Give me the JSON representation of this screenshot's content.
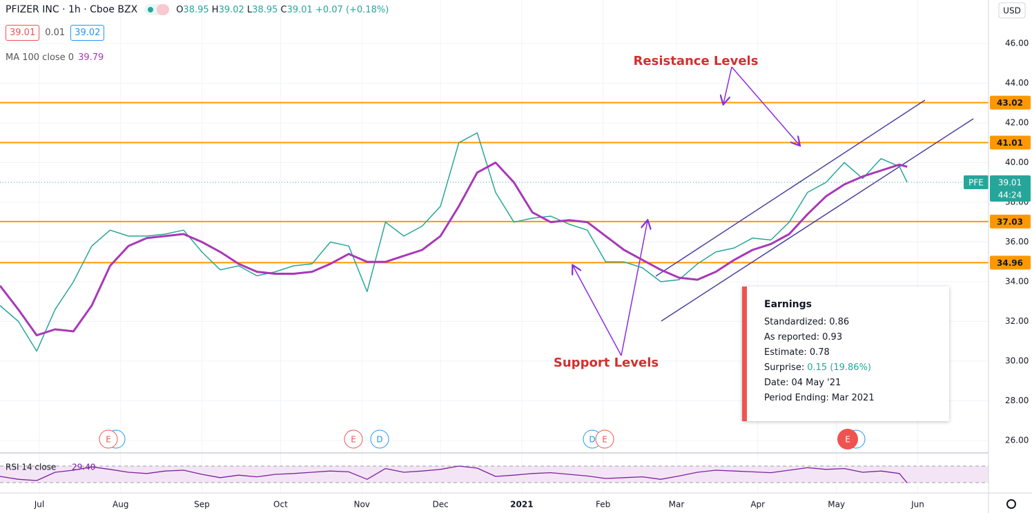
{
  "header": {
    "title": "PFIZER INC · 1h · Cboe BZX",
    "ohlc": [
      {
        "label": "O",
        "value": "38.95"
      },
      {
        "label": "H",
        "value": "39.02"
      },
      {
        "label": "L",
        "value": "38.95"
      },
      {
        "label": "C",
        "value": "39.01"
      }
    ],
    "change": "+0.07 (+0.18%)",
    "bid": "39.01",
    "spread": "0.01",
    "ask": "39.02",
    "currency": "USD",
    "countdown": "44:24"
  },
  "annotations": {
    "resistance": "Resistance Levels",
    "support": "Support Levels"
  },
  "events": [
    {
      "label": "E"
    },
    {
      "label": "E"
    },
    {
      "label": "D"
    },
    {
      "label": "D"
    },
    {
      "label": "E"
    },
    {
      "label": "E"
    }
  ],
  "earnings_tooltip": {
    "title": "Earnings",
    "rows": [
      {
        "label": "Standardized:",
        "value": "0.86"
      },
      {
        "label": "As reported:",
        "value": "0.93"
      },
      {
        "label": "Estimate:",
        "value": "0.78"
      },
      {
        "label": "Surprise:",
        "value": "0.15 (19.86%)"
      },
      {
        "label": "Date:",
        "value": "04 May '21"
      },
      {
        "label": "Period Ending:",
        "value": "Mar 2021"
      }
    ]
  },
  "chart_data": {
    "type": "line",
    "x": [
      "2020-06-16",
      "2020-06-23",
      "2020-06-30",
      "2020-07-07",
      "2020-07-14",
      "2020-07-21",
      "2020-07-28",
      "2020-08-04",
      "2020-08-11",
      "2020-08-18",
      "2020-08-25",
      "2020-09-01",
      "2020-09-08",
      "2020-09-15",
      "2020-09-22",
      "2020-09-29",
      "2020-10-06",
      "2020-10-13",
      "2020-10-20",
      "2020-10-27",
      "2020-11-03",
      "2020-11-10",
      "2020-11-17",
      "2020-11-24",
      "2020-12-01",
      "2020-12-08",
      "2020-12-15",
      "2020-12-22",
      "2020-12-29",
      "2021-01-05",
      "2021-01-12",
      "2021-01-19",
      "2021-01-26",
      "2021-02-02",
      "2021-02-09",
      "2021-02-16",
      "2021-02-23",
      "2021-03-02",
      "2021-03-09",
      "2021-03-16",
      "2021-03-23",
      "2021-03-30",
      "2021-04-06",
      "2021-04-13",
      "2021-04-20",
      "2021-04-27",
      "2021-05-04",
      "2021-05-11",
      "2021-05-18",
      "2021-05-25",
      "2021-05-28"
    ],
    "series": [
      {
        "name": "PFE",
        "color": "#26a69a",
        "values": [
          32.8,
          32.0,
          30.5,
          32.6,
          34.0,
          35.8,
          36.6,
          36.3,
          36.3,
          36.4,
          36.6,
          35.5,
          34.6,
          34.8,
          34.3,
          34.5,
          34.8,
          34.9,
          36.0,
          35.8,
          33.5,
          37.0,
          36.3,
          36.8,
          37.8,
          41.0,
          41.5,
          38.5,
          37.0,
          37.2,
          37.3,
          36.9,
          36.6,
          35.0,
          35.0,
          34.7,
          34.0,
          34.1,
          34.9,
          35.5,
          35.7,
          36.2,
          36.1,
          37.0,
          38.5,
          39.0,
          40.0,
          39.2,
          40.2,
          39.8,
          39.01
        ]
      },
      {
        "name": "MA 100 close 0",
        "color": "#a838b8",
        "values": [
          33.8,
          32.6,
          31.3,
          31.6,
          31.5,
          32.8,
          34.8,
          35.8,
          36.2,
          36.3,
          36.4,
          36.0,
          35.5,
          34.9,
          34.5,
          34.4,
          34.4,
          34.5,
          34.9,
          35.4,
          35.0,
          35.0,
          35.3,
          35.6,
          36.3,
          37.8,
          39.5,
          40.0,
          39.0,
          37.5,
          37.0,
          37.1,
          37.0,
          36.3,
          35.6,
          35.1,
          34.6,
          34.2,
          34.1,
          34.5,
          35.1,
          35.6,
          35.9,
          36.4,
          37.4,
          38.3,
          38.9,
          39.3,
          39.6,
          39.9,
          39.79
        ]
      }
    ],
    "xlim": [
      "2020-06-16",
      "2021-06-28"
    ],
    "xticks": [
      {
        "value": "2020-07-01",
        "label": "Jul"
      },
      {
        "value": "2020-08-01",
        "label": "Aug"
      },
      {
        "value": "2020-09-01",
        "label": "Sep"
      },
      {
        "value": "2020-10-01",
        "label": "Oct"
      },
      {
        "value": "2020-11-01",
        "label": "Nov"
      },
      {
        "value": "2020-12-01",
        "label": "Dec"
      },
      {
        "value": "2021-01-01",
        "label": "2021"
      },
      {
        "value": "2021-02-01",
        "label": "Feb"
      },
      {
        "value": "2021-03-01",
        "label": "Mar"
      },
      {
        "value": "2021-04-01",
        "label": "Apr"
      },
      {
        "value": "2021-05-01",
        "label": "May"
      },
      {
        "value": "2021-06-01",
        "label": "Jun"
      }
    ],
    "ylim": [
      25.41,
      48.19
    ],
    "yticks": [
      {
        "value": 26,
        "label": "26.00"
      },
      {
        "value": 28,
        "label": "28.00"
      },
      {
        "value": 30,
        "label": "30.00"
      },
      {
        "value": 32,
        "label": "32.00"
      },
      {
        "value": 34,
        "label": "34.00"
      },
      {
        "value": 36,
        "label": "36.00"
      },
      {
        "value": 38,
        "label": "38.00"
      },
      {
        "value": 40,
        "label": "40.00"
      },
      {
        "value": 42,
        "label": "42.00"
      },
      {
        "value": 44,
        "label": "44.00"
      },
      {
        "value": 46,
        "label": "46.00"
      }
    ],
    "grid": true,
    "levels": [
      43.02,
      41.01,
      37.03,
      34.96
    ],
    "level_color": "#ff9800",
    "rsi": {
      "name": "RSI 14 close",
      "color": "#7e1fa0",
      "values": [
        45,
        38,
        35,
        55,
        60,
        68,
        62,
        55,
        52,
        58,
        60,
        50,
        42,
        48,
        44,
        50,
        52,
        55,
        58,
        56,
        38,
        64,
        55,
        58,
        62,
        70,
        65,
        45,
        48,
        52,
        54,
        50,
        46,
        40,
        42,
        44,
        38,
        46,
        55,
        60,
        58,
        56,
        54,
        60,
        66,
        62,
        64,
        55,
        58,
        52,
        29.4
      ],
      "value_label": "29.40",
      "ylim": [
        0,
        100
      ],
      "bands": [
        30,
        70
      ]
    }
  }
}
